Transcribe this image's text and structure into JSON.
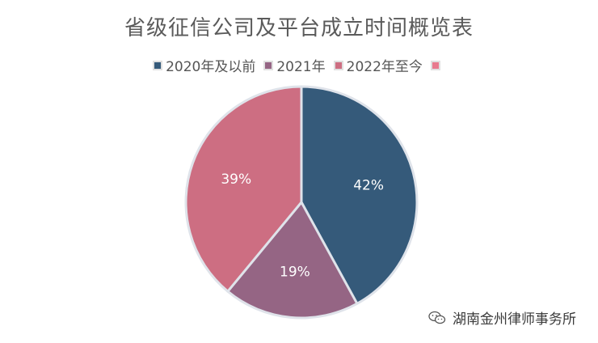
{
  "chart_data": {
    "type": "pie",
    "title": "省级征信公司及平台成立时间概览表",
    "legend_position": "top",
    "slices": [
      {
        "label": "2020年及以前",
        "value": 42,
        "display": "42%",
        "color": "#355a7a"
      },
      {
        "label": "2021年",
        "value": 19,
        "display": "19%",
        "color": "#956584"
      },
      {
        "label": "2022年至今",
        "value": 39,
        "display": "39%",
        "color": "#cd6e82"
      },
      {
        "label": "",
        "value": 0,
        "display": "",
        "color": "#e87a8e"
      }
    ]
  },
  "watermark": {
    "icon": "wechat-icon",
    "text": "湖南金州律师事务所"
  }
}
